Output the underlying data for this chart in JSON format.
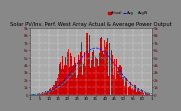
{
  "title": "Solar PV/Inv. Perf. West Array Actual & Average Power Output",
  "title_fontsize": 3.8,
  "fig_bg_color": "#888888",
  "plot_bg_color": "#aaaaaa",
  "bar_color": "#cc0000",
  "avg_line_color": "#0000ff",
  "avg_line2_color": "#00bbbb",
  "grid_color": "#ffffff",
  "ylabel_right_color": "#660000",
  "xlabel_fontsize": 2.8,
  "ylabel_fontsize": 2.8,
  "legend_fontsize": 2.6,
  "n_bars": 144,
  "x_tick_labels": [
    "1",
    "5",
    "10",
    "15",
    "20",
    "25",
    "30",
    "35",
    "40",
    "45",
    "50",
    "55",
    "60",
    "1"
  ],
  "y_tick_labels_right": [
    "9k",
    "8k",
    "7k",
    "6k",
    "5k",
    "4k",
    "3k",
    "2k",
    "1k",
    "0"
  ],
  "left_tick_labels": [
    "9k",
    "8k",
    "7k",
    "6k",
    "5k",
    "4k",
    "3k",
    "2k",
    "1k",
    "0"
  ]
}
